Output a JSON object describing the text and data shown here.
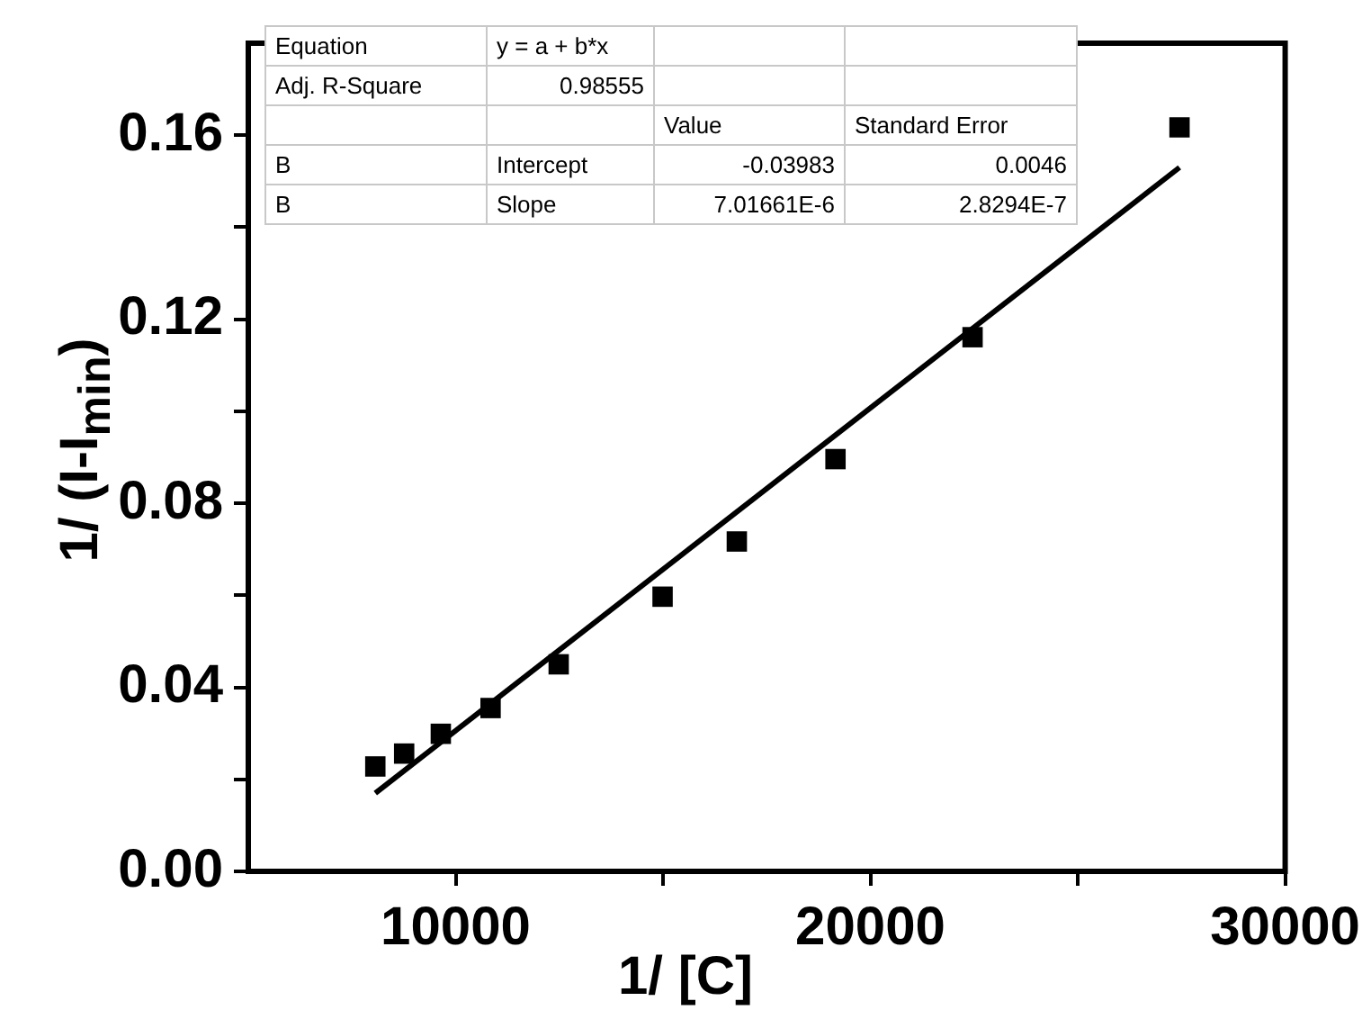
{
  "chart_data": {
    "type": "scatter",
    "xlabel": "1/ [C]",
    "ylabel": "1/ (I-I$_{min}$)",
    "xlim": [
      5000,
      30000
    ],
    "xticks": [
      10000,
      {
        "value": 15000,
        "label": null
      },
      20000,
      {
        "value": 25000,
        "label": null
      },
      30000
    ],
    "ylim": [
      0,
      0.18
    ],
    "yticks": [
      {
        "value": 0,
        "label": "0.00"
      },
      {
        "value": 0.02,
        "label": null
      },
      0.04,
      {
        "value": 0.06,
        "label": null
      },
      0.08,
      {
        "value": 0.1,
        "label": null
      },
      0.12,
      {
        "value": 0.14,
        "label": null
      },
      0.16
    ],
    "grid": false,
    "legend": false,
    "series": [
      {
        "type": "scatter",
        "color": "#000000",
        "marker": "square",
        "x": [
          8063,
          8758,
          9642,
          10842,
          12484,
          14989,
          16779,
          19158,
          22463,
          27453
        ],
        "values": [
          0.0228,
          0.0256,
          0.0299,
          0.0355,
          0.045,
          0.0597,
          0.0717,
          0.0896,
          0.1161,
          0.1617
        ]
      },
      {
        "type": "line",
        "color": "#000000",
        "marker": "none",
        "line_style": "solid",
        "x": [
          8063,
          27453
        ],
        "values": [
          0.017,
          0.153
        ]
      }
    ],
    "annotations": [
      "Equation",
      "y = a + b*x",
      "Adj. R-Square",
      "0.98555",
      "Value",
      "Standard Error",
      "B",
      "Intercept",
      "-0.03983",
      "0.0046",
      "B",
      "Slope",
      "7.01661E-6",
      "2.8294E-7"
    ]
  }
}
